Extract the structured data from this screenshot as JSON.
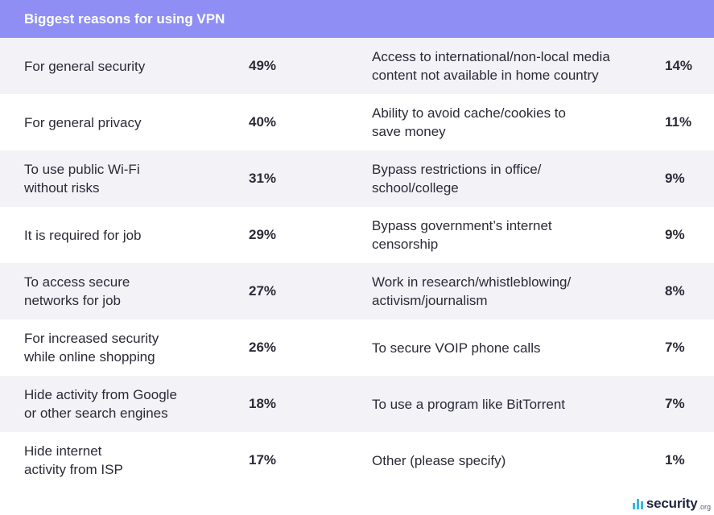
{
  "title": "Biggest reasons for using VPN",
  "brand": {
    "name": "security",
    "tld": ".org",
    "accent": "#3bb5d8"
  },
  "colors": {
    "header_bg": "#8f8ef5",
    "row_shade": "#f2f2f7"
  },
  "chart_data": {
    "type": "table",
    "title": "Biggest reasons for using VPN",
    "rows": [
      {
        "left": {
          "label": [
            "For general security"
          ],
          "value": "49%"
        },
        "right": {
          "label": [
            "Access to international/non-local media",
            "content not available in home country"
          ],
          "value": "14%"
        }
      },
      {
        "left": {
          "label": [
            "For general privacy"
          ],
          "value": "40%"
        },
        "right": {
          "label": [
            "Ability to avoid cache/cookies to",
            "save money"
          ],
          "value": "11%"
        }
      },
      {
        "left": {
          "label": [
            "To use public Wi-Fi",
            "without risks"
          ],
          "value": "31%"
        },
        "right": {
          "label": [
            "Bypass restrictions in office/",
            "school/college"
          ],
          "value": "9%"
        }
      },
      {
        "left": {
          "label": [
            "It is required for job"
          ],
          "value": "29%"
        },
        "right": {
          "label": [
            "Bypass government’s internet",
            "censorship"
          ],
          "value": "9%"
        }
      },
      {
        "left": {
          "label": [
            "To access secure",
            "networks for job"
          ],
          "value": "27%"
        },
        "right": {
          "label": [
            "Work in research/whistleblowing/",
            "activism/journalism"
          ],
          "value": "8%"
        }
      },
      {
        "left": {
          "label": [
            "For increased security",
            "while online shopping"
          ],
          "value": "26%"
        },
        "right": {
          "label": [
            "To secure VOIP phone calls"
          ],
          "value": "7%"
        }
      },
      {
        "left": {
          "label": [
            "Hide activity from Google",
            "or other search engines"
          ],
          "value": "18%"
        },
        "right": {
          "label": [
            "To use a program like BitTorrent"
          ],
          "value": "7%"
        }
      },
      {
        "left": {
          "label": [
            "Hide internet",
            "activity from ISP"
          ],
          "value": "17%"
        },
        "right": {
          "label": [
            "Other (please specify)"
          ],
          "value": "1%"
        }
      }
    ]
  }
}
